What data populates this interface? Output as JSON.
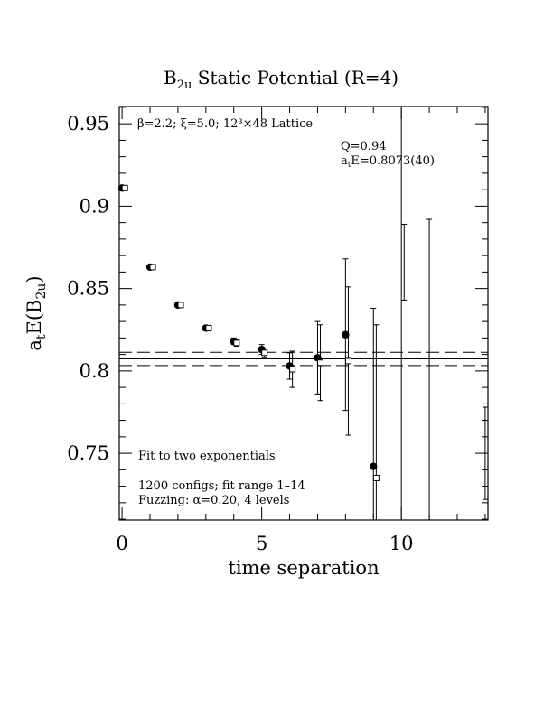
{
  "chart_data": {
    "type": "scatter",
    "title": "B",
    "title_sub": "2u",
    "title_rest": " Static Potential (R=4)",
    "xlabel": "time separation",
    "ylabel_main": "a",
    "ylabel_sub1": "t",
    "ylabel_mid": "E(B",
    "ylabel_sub2": "2u",
    "ylabel_end": ")",
    "xlim": [
      -0.1,
      13.1
    ],
    "ylim": [
      0.7095,
      0.9605
    ],
    "x_ticks": [
      0,
      5,
      10
    ],
    "x_tick_labels": [
      "0",
      "5",
      "10"
    ],
    "y_ticks": [
      0.75,
      0.8,
      0.85,
      0.9,
      0.95
    ],
    "y_tick_labels": [
      "0.75",
      "0.8",
      "0.85",
      "0.9",
      "0.95"
    ],
    "annotations": {
      "lattice": "β=2.2; ξ=5.0; 12³×48 Lattice",
      "q_value": "Q=0.94",
      "energy_prefix": "a",
      "energy_sub": "t",
      "energy_rest": "E=0.8073(40)",
      "fit_type": "Fit to two exponentials",
      "configs": "1200 configs; fit range 1–14",
      "fuzzing": "Fuzzing: α=0.20, 4 levels"
    },
    "fit": {
      "value": 0.8073,
      "error": 0.004
    },
    "series": [
      {
        "marker": "filled-circle",
        "points": [
          {
            "x": 0,
            "y": 0.911,
            "err": 0.001
          },
          {
            "x": 1,
            "y": 0.863,
            "err": 0.001
          },
          {
            "x": 2,
            "y": 0.84,
            "err": 0.001
          },
          {
            "x": 3,
            "y": 0.826,
            "err": 0.0015
          },
          {
            "x": 4,
            "y": 0.818,
            "err": 0.002
          },
          {
            "x": 5,
            "y": 0.813,
            "err": 0.003
          },
          {
            "x": 6,
            "y": 0.803,
            "err": 0.008
          },
          {
            "x": 7,
            "y": 0.808,
            "err": 0.022
          },
          {
            "x": 8,
            "y": 0.822,
            "err": 0.046
          },
          {
            "x": 9,
            "y": 0.742,
            "err": 0.096
          },
          {
            "x": 10,
            "y": 0.81,
            "err": 0.22,
            "marker_hidden": true
          },
          {
            "x": 11,
            "y": 0.79,
            "err": 0.102,
            "marker_hidden": true
          }
        ]
      },
      {
        "marker": "open-square",
        "points": [
          {
            "x": 0.1,
            "y": 0.911,
            "err": 0.001
          },
          {
            "x": 1.1,
            "y": 0.863,
            "err": 0.001
          },
          {
            "x": 2.1,
            "y": 0.84,
            "err": 0.001
          },
          {
            "x": 3.1,
            "y": 0.826,
            "err": 0.0015
          },
          {
            "x": 4.1,
            "y": 0.817,
            "err": 0.002
          },
          {
            "x": 5.1,
            "y": 0.811,
            "err": 0.003
          },
          {
            "x": 6.1,
            "y": 0.801,
            "err": 0.011
          },
          {
            "x": 7.1,
            "y": 0.805,
            "err": 0.023
          },
          {
            "x": 8.1,
            "y": 0.806,
            "err": 0.045
          },
          {
            "x": 9.1,
            "y": 0.735,
            "err": 0.093
          },
          {
            "x": 10.1,
            "y": 0.866,
            "err": 0.023,
            "marker_hidden": true
          },
          {
            "x": 13,
            "y": 0.75,
            "err": 0.028,
            "marker_hidden": true
          }
        ]
      }
    ]
  }
}
